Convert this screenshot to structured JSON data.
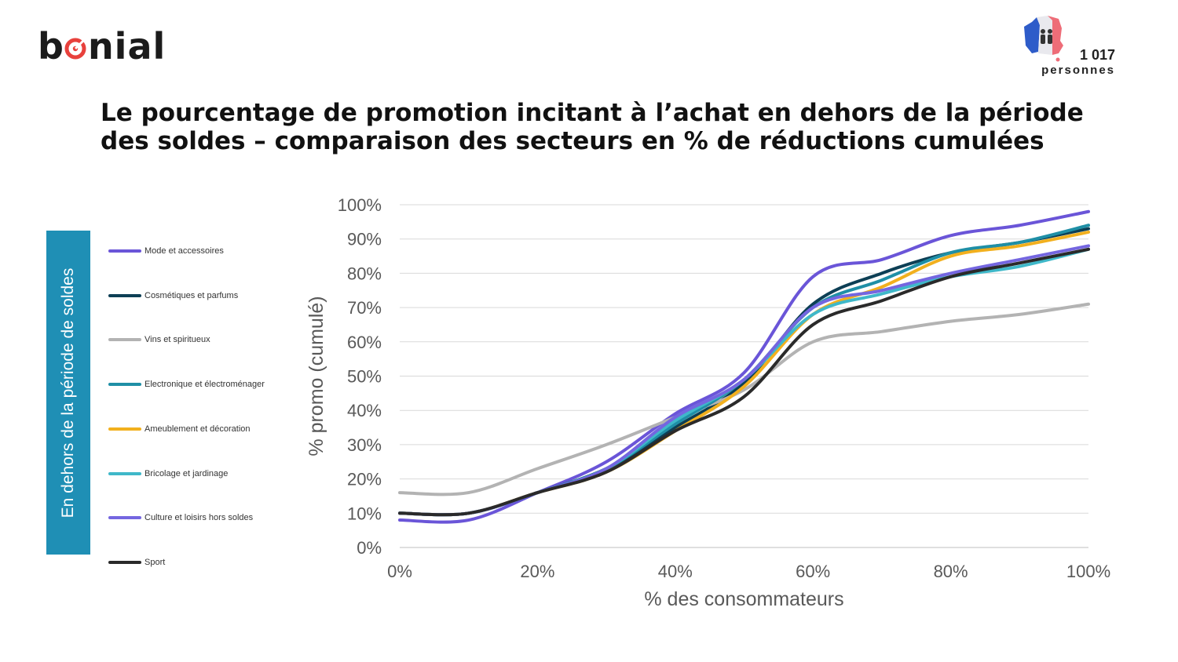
{
  "brand": {
    "logo_text_start": "b",
    "logo_text_end": "nial"
  },
  "badge": {
    "count": "1 017",
    "label": "personnes"
  },
  "title": "Le pourcentage de promotion incitant à l’achat en dehors de la période des soldes – comparaison des secteurs en % de réductions cumulées",
  "side_label": "En dehors de la période de soldes",
  "chart_data": {
    "type": "line",
    "xlabel": "% des consommateurs",
    "ylabel": "% promo (cumulé)",
    "xlim": [
      0,
      100
    ],
    "ylim": [
      0,
      100
    ],
    "x_ticks": [
      "0%",
      "20%",
      "40%",
      "60%",
      "80%",
      "100%"
    ],
    "y_ticks": [
      "0%",
      "10%",
      "20%",
      "30%",
      "40%",
      "50%",
      "60%",
      "70%",
      "80%",
      "90%",
      "100%"
    ],
    "grid": "horizontal",
    "legend_position": "left",
    "x": [
      0,
      10,
      20,
      30,
      40,
      50,
      60,
      70,
      80,
      90,
      100
    ],
    "series": [
      {
        "name": "Mode et accessoires",
        "color": "#6a55d8",
        "values": [
          8,
          8,
          16,
          25,
          39,
          51,
          79,
          84,
          91,
          94,
          98
        ]
      },
      {
        "name": "Cosmétiques et parfums",
        "color": "#0d3f55",
        "values": [
          10,
          10,
          16,
          23,
          35,
          48,
          71,
          80,
          86,
          89,
          93
        ]
      },
      {
        "name": "Vins et spiritueux",
        "color": "#b3b3b3",
        "values": [
          16,
          16,
          23,
          30,
          38,
          46,
          60,
          63,
          66,
          68,
          71
        ]
      },
      {
        "name": "Electronique et électroménager",
        "color": "#1f8fa6",
        "values": [
          10,
          10,
          16,
          23,
          36,
          49,
          70,
          78,
          86,
          89,
          94
        ]
      },
      {
        "name": "Ameublement et décoration",
        "color": "#f2b01e",
        "values": [
          10,
          10,
          16,
          22,
          34,
          47,
          68,
          76,
          85,
          88,
          92
        ]
      },
      {
        "name": "Bricolage et jardinage",
        "color": "#3fb8c9",
        "values": [
          10,
          10,
          16,
          23,
          37,
          49,
          68,
          74,
          79,
          82,
          87
        ]
      },
      {
        "name": "Culture et loisirs hors soldes",
        "color": "#7466e0",
        "values": [
          10,
          10,
          16,
          23,
          38,
          49,
          70,
          75,
          80,
          84,
          88
        ]
      },
      {
        "name": "Sport",
        "color": "#2a2a2a",
        "values": [
          10,
          10,
          16,
          22,
          34,
          44,
          65,
          72,
          79,
          83,
          87
        ]
      }
    ]
  }
}
